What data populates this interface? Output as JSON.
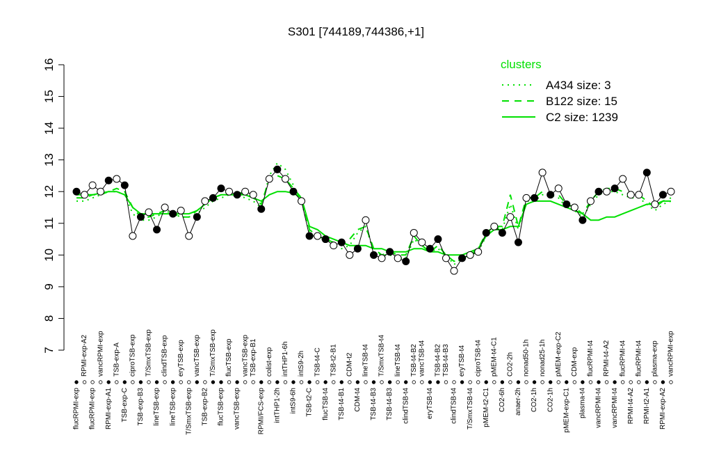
{
  "chart_data": {
    "type": "line",
    "title": "S301 [744189,744386,+1]",
    "ylim": [
      7,
      16
    ],
    "yticks": [
      7,
      8,
      9,
      10,
      11,
      12,
      13,
      14,
      15,
      16
    ],
    "points": {
      "x": [
        1,
        2,
        3,
        4,
        5,
        6,
        7,
        8,
        9,
        10,
        11,
        12,
        13,
        14,
        15,
        16,
        17,
        18,
        19,
        20,
        21,
        22,
        23,
        24,
        25,
        26,
        27,
        28,
        29,
        30,
        31,
        32,
        33,
        34,
        35,
        36,
        37,
        38,
        39,
        40,
        41,
        42,
        43,
        44,
        45,
        46,
        47,
        48,
        49,
        50,
        51,
        52,
        53,
        54,
        55,
        56,
        57,
        58,
        59,
        60,
        61,
        62,
        63,
        64,
        65,
        66,
        67,
        68,
        69,
        70,
        71,
        72,
        73,
        74,
        75
      ],
      "values": [
        12.0,
        11.9,
        12.2,
        12.0,
        12.35,
        12.4,
        12.2,
        10.6,
        11.2,
        11.35,
        10.8,
        11.5,
        11.3,
        11.4,
        10.6,
        11.2,
        11.7,
        11.8,
        12.1,
        12.0,
        11.9,
        12.0,
        11.9,
        11.45,
        12.4,
        12.7,
        12.4,
        12.0,
        11.7,
        10.6,
        10.6,
        10.5,
        10.3,
        10.4,
        10.0,
        10.2,
        11.1,
        10.0,
        9.9,
        10.1,
        9.9,
        9.8,
        10.7,
        10.4,
        10.2,
        10.5,
        9.9,
        9.5,
        9.9,
        10.0,
        10.1,
        10.7,
        10.9,
        10.7,
        11.2,
        10.4,
        11.8,
        11.8,
        12.6,
        11.9,
        12.1,
        11.6,
        11.5,
        11.1,
        11.7,
        12.0,
        12.0,
        12.1,
        12.4,
        11.9,
        11.9,
        12.6,
        11.6,
        11.9,
        12.0
      ],
      "filled": [
        true,
        false,
        false,
        false,
        true,
        false,
        true,
        false,
        true,
        false,
        true,
        false,
        true,
        false,
        false,
        true,
        false,
        true,
        true,
        false,
        true,
        false,
        false,
        true,
        false,
        true,
        false,
        true,
        false,
        true,
        false,
        true,
        false,
        true,
        false,
        true,
        false,
        true,
        false,
        true,
        false,
        true,
        false,
        false,
        true,
        true,
        false,
        false,
        true,
        false,
        false,
        true,
        false,
        true,
        false,
        true,
        false,
        true,
        false,
        true,
        false,
        true,
        false,
        true,
        false,
        true,
        false,
        true,
        false,
        false,
        false,
        true,
        false,
        true,
        false
      ]
    },
    "x_labels_top": {
      "x": [
        2,
        4,
        6,
        8,
        10,
        12,
        14,
        16,
        18,
        20,
        22,
        23,
        25,
        27,
        29,
        31,
        33,
        35,
        37,
        39,
        41,
        43,
        44,
        46,
        47,
        49,
        51,
        53,
        55,
        57,
        59,
        61,
        63,
        65,
        67,
        69,
        71,
        73,
        75
      ],
      "labels": [
        "RPMI-exp-A2",
        "vancRPMI-exp",
        "TSB-exp-A",
        "ciproTSB-exp",
        "T/SmxTSB-exp",
        "clindTSB-exp",
        "eryTSB-exp",
        "vancTSB-exp",
        "T/SmxTSB-exp",
        "flucTSB-exp",
        "vancTSB-exp",
        "TSB-exp-B1",
        "colist-exp",
        "intTHP1-6h",
        "intS9-2h",
        "TSB-t4-C",
        "TSB-t2-B1",
        "CDM-t2",
        "lineTSB-t4",
        "T/SmxTSB-t4",
        "lineTSB-t4",
        "TSB-t4-B2",
        "vancTSB-t4",
        "TSB-t4-B2",
        "TSB-t4-B3",
        "eryTSB-t4",
        "ciproTSB-t4",
        "pMEM-t4-C1",
        "CO2-2h",
        "nonad50-1h",
        "nonad25-1h",
        "pMEM-exp-C2",
        "CDM-exp",
        "flucRPMI-t4",
        "RPMI-t4-A2",
        "flucRPMI-t4",
        "flucRPMI-t4",
        "plasma-exp",
        "vancRPMI-exp"
      ]
    },
    "x_labels_bottom": {
      "x": [
        1,
        3,
        5,
        7,
        9,
        11,
        13,
        15,
        17,
        19,
        21,
        24,
        26,
        28,
        30,
        32,
        34,
        36,
        38,
        40,
        42,
        45,
        48,
        50,
        52,
        54,
        56,
        58,
        60,
        62,
        64,
        66,
        68,
        70,
        72,
        74
      ],
      "labels": [
        "flucRPMI-exp",
        "flucRPMI-exp",
        "RPMI-exp-A1",
        "TSB-exp-C",
        "TSB-exp-B3",
        "lineTSB-exp",
        "lineTSB-exp",
        "T/SmxTSB-exp",
        "TSB-exp-B2",
        "flucTSB-exp",
        "vancTSB-exp",
        "RPMI/FCS-exp",
        "intTHP1-2h",
        "intS9-6h",
        "TSB-t2-C",
        "flucTSB-t4",
        "TSB-t4-B1",
        "CDM-t4",
        "TSB-t4-B3",
        "TSB-t4-B3",
        "clindTSB-t4",
        "eryTSB-t4",
        "clindTSB-t4",
        "T/SmxTSB-t4",
        "pMEM-t2-C1",
        "CO2-6h",
        "anaer-2h",
        "CO2-1h",
        "CO2-1h",
        "pMEM-exp-C1",
        "plasma-t4",
        "vancRPMI-t4",
        "vancRPMI-t4",
        "RPMI-t4-A2",
        "RPMI-t2-A1",
        "RPMI-exp-A2"
      ]
    },
    "legend_title": "clusters",
    "series": [
      {
        "name": "A434 size: 3",
        "color": "#00e000",
        "dash": "dotted",
        "values": [
          11.7,
          11.7,
          11.8,
          11.9,
          12.0,
          12.0,
          11.9,
          11.3,
          11.1,
          11.1,
          11.2,
          11.4,
          11.3,
          11.2,
          11.2,
          11.3,
          11.5,
          11.7,
          11.8,
          11.9,
          11.9,
          11.8,
          11.7,
          11.5,
          12.5,
          12.9,
          12.7,
          12.2,
          11.7,
          10.7,
          10.5,
          10.5,
          10.3,
          10.2,
          10.3,
          10.7,
          10.9,
          10.1,
          10.0,
          10.0,
          9.9,
          9.9,
          10.5,
          10.3,
          10.1,
          10.2,
          10.0,
          9.7,
          9.9,
          10.0,
          10.1,
          10.6,
          10.9,
          10.8,
          11.6,
          10.8,
          11.7,
          11.7,
          11.9,
          11.9,
          11.8,
          11.5,
          11.4,
          11.2,
          11.6,
          11.9,
          12.0,
          12.0,
          11.9,
          11.8,
          11.8,
          11.6,
          11.4,
          11.6,
          11.7
        ]
      },
      {
        "name": "B122 size: 15",
        "color": "#00e000",
        "dash": "dashed",
        "values": [
          11.8,
          11.8,
          11.9,
          11.9,
          12.0,
          12.1,
          12.0,
          11.5,
          11.2,
          11.2,
          11.3,
          11.4,
          11.3,
          11.2,
          11.2,
          11.4,
          11.6,
          11.8,
          11.9,
          11.9,
          12.0,
          11.9,
          11.8,
          11.6,
          12.4,
          12.5,
          12.4,
          12.1,
          11.8,
          10.8,
          10.6,
          10.5,
          10.4,
          10.3,
          10.5,
          10.8,
          10.9,
          10.2,
          10.0,
          10.1,
          10.0,
          10.0,
          10.6,
          10.3,
          10.1,
          10.3,
          10.0,
          9.8,
          9.9,
          10.0,
          10.2,
          10.7,
          10.9,
          10.9,
          11.9,
          10.9,
          11.8,
          11.8,
          12.0,
          11.9,
          11.9,
          11.6,
          11.5,
          11.3,
          11.7,
          12.0,
          12.1,
          12.1,
          12.0,
          11.9,
          11.9,
          11.7,
          11.5,
          11.7,
          11.8
        ]
      },
      {
        "name": "C2 size: 1239",
        "color": "#00e000",
        "dash": "solid",
        "values": [
          11.9,
          11.9,
          11.9,
          11.95,
          12.0,
          12.0,
          11.9,
          11.5,
          11.3,
          11.3,
          11.3,
          11.3,
          11.3,
          11.3,
          11.3,
          11.4,
          11.6,
          11.8,
          11.9,
          11.9,
          11.9,
          11.9,
          11.8,
          11.7,
          11.9,
          12.0,
          12.0,
          11.95,
          11.8,
          10.9,
          10.8,
          10.6,
          10.5,
          10.4,
          10.3,
          10.3,
          10.3,
          10.2,
          10.2,
          10.1,
          10.1,
          10.1,
          10.2,
          10.2,
          10.1,
          10.1,
          10.0,
          10.0,
          10.0,
          10.1,
          10.2,
          10.6,
          10.8,
          10.8,
          10.9,
          10.9,
          11.6,
          11.7,
          11.7,
          11.7,
          11.6,
          11.5,
          11.4,
          11.3,
          11.1,
          11.1,
          11.2,
          11.2,
          11.3,
          11.4,
          11.5,
          11.6,
          11.6,
          11.7,
          11.7
        ]
      }
    ]
  }
}
